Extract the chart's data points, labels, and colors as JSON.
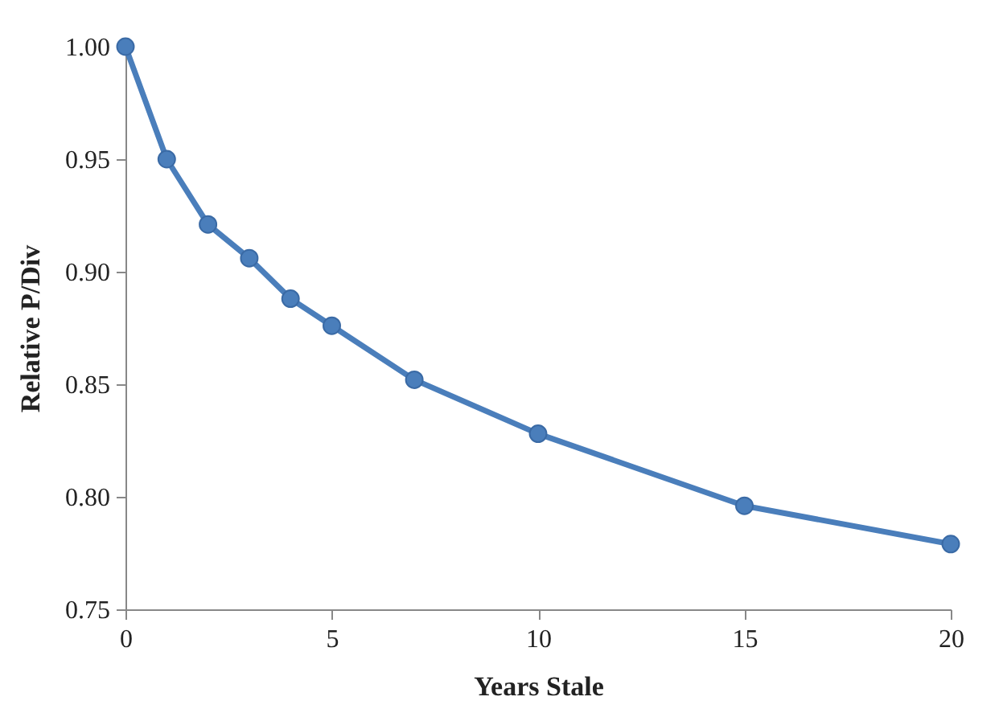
{
  "chart_data": {
    "type": "line",
    "xlabel": "Years Stale",
    "ylabel": "Relative P/Div",
    "x": [
      0,
      1,
      2,
      3,
      4,
      5,
      7,
      10,
      15,
      20
    ],
    "series": [
      {
        "color": "#4a7ebb",
        "values": [
          1.0,
          0.95,
          0.921,
          0.906,
          0.888,
          0.876,
          0.852,
          0.828,
          0.796,
          0.779
        ]
      }
    ],
    "xlim": [
      0,
      20
    ],
    "xticks": [
      0,
      5,
      10,
      15,
      20
    ],
    "ylim": [
      0.75,
      1.0
    ],
    "yticks": [
      {
        "value": 0.75,
        "label": "0.75"
      },
      {
        "value": 0.8,
        "label": "0.80"
      },
      {
        "value": 0.85,
        "label": "0.85"
      },
      {
        "value": 0.9,
        "label": "0.90"
      },
      {
        "value": 0.95,
        "label": "0.95"
      },
      {
        "value": 1.0,
        "label": "1.00"
      }
    ],
    "marker": "circle",
    "line_style": "solid",
    "grid": false
  }
}
